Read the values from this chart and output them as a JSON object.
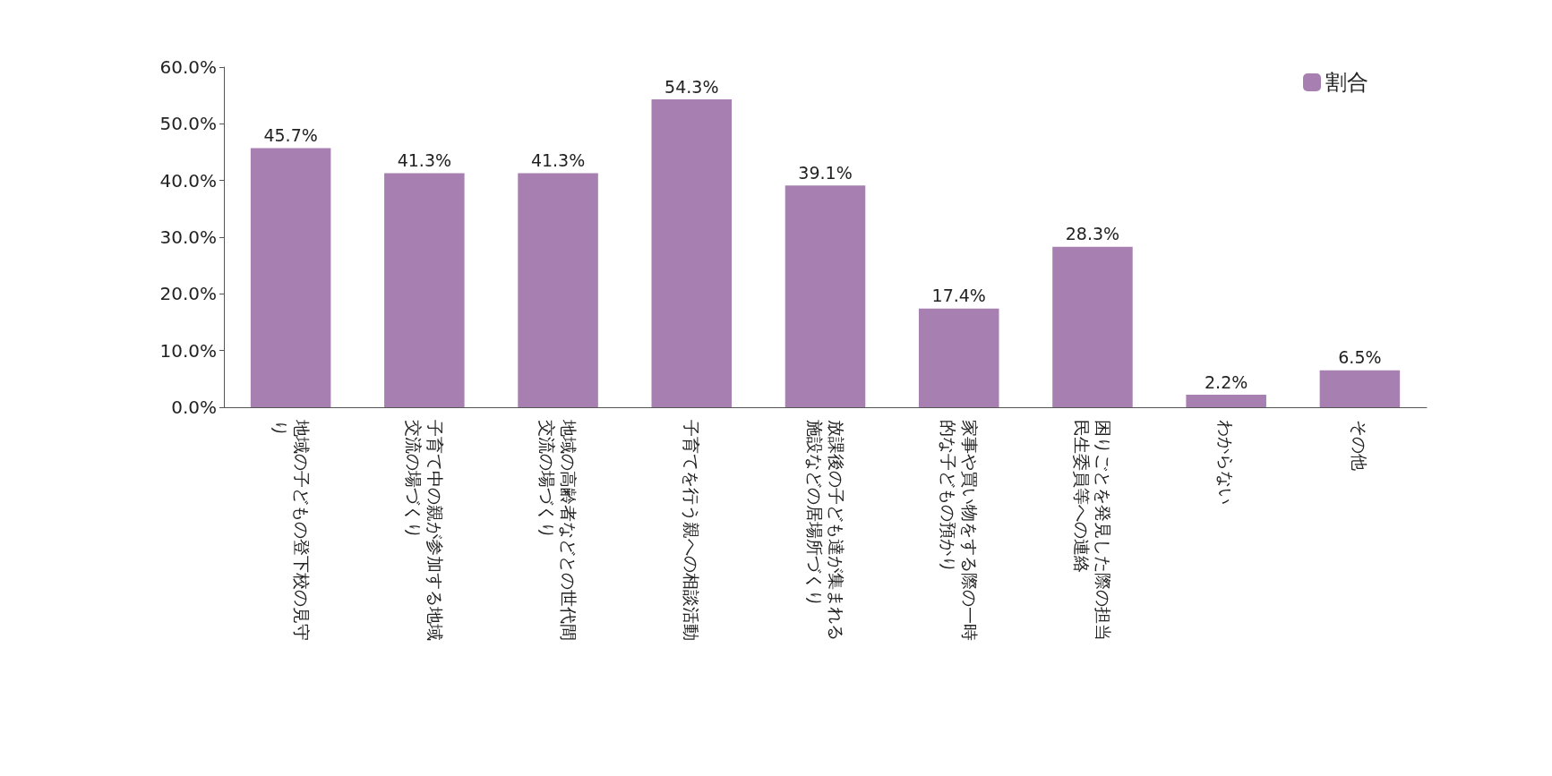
{
  "chart_data": {
    "type": "bar",
    "categories": [
      "地域の子どもの登下校の見守り",
      "子育て中の親が参加する地域交流の場づくり",
      "地域の高齢者などとの世代間交流の場づくり",
      "子育てを行う親への相談活動",
      "放課後の子ども達が集まれる施設などの居場所づくり",
      "家事や買い物をする際の一時的な子どもの預かり",
      "困りごとを発見した際の担当民生委員等への連絡",
      "わからない",
      "その他"
    ],
    "series": [
      {
        "name": "割合",
        "color": "#a77fb0",
        "values": [
          45.7,
          41.3,
          41.3,
          54.3,
          39.1,
          17.4,
          28.3,
          2.2,
          6.5
        ],
        "value_labels": [
          "45.7%",
          "41.3%",
          "41.3%",
          "54.3%",
          "39.1%",
          "17.4%",
          "28.3%",
          "2.2%",
          "6.5%"
        ]
      }
    ],
    "ylim": [
      0,
      60
    ],
    "yticks": [
      {
        "value": 0,
        "label": "0.0%"
      },
      {
        "value": 10,
        "label": "10.0%"
      },
      {
        "value": 20,
        "label": "20.0%"
      },
      {
        "value": 30,
        "label": "30.0%"
      },
      {
        "value": 40,
        "label": "40.0%"
      },
      {
        "value": 50,
        "label": "50.0%"
      },
      {
        "value": 60,
        "label": "60.0%"
      }
    ],
    "grid": false,
    "legend": "top right"
  }
}
